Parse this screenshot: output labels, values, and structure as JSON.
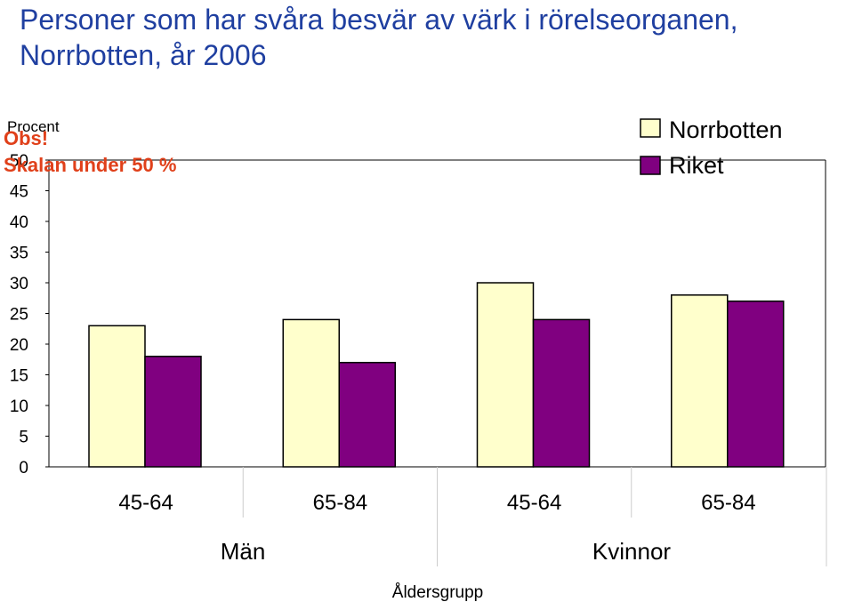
{
  "title_line1": "Personer som har svåra besvär av värk i rörelseorganen,",
  "title_line2": "Norrbotten, år 2006",
  "note_line1": "Obs!",
  "note_line2": "Skalan under 50 %",
  "colors": {
    "title": "#1f3fa0",
    "note": "#e0401a",
    "norrbotten": "#ffffcc",
    "riket": "#800080"
  },
  "chart_data": {
    "type": "bar",
    "ylabel": "Procent",
    "xlabel": "Åldersgrupp",
    "ylim": [
      0,
      50
    ],
    "yticks": [
      0,
      5,
      10,
      15,
      20,
      25,
      30,
      35,
      40,
      45,
      50
    ],
    "categories": [
      "45-64",
      "65-84",
      "45-64",
      "65-84"
    ],
    "groups": [
      "Män",
      "Kvinnor"
    ],
    "series": [
      {
        "name": "Norrbotten",
        "values": [
          23,
          24,
          30,
          28
        ]
      },
      {
        "name": "Riket",
        "values": [
          18,
          17,
          24,
          27
        ]
      }
    ],
    "legend_position": "top-right",
    "grid": false
  }
}
